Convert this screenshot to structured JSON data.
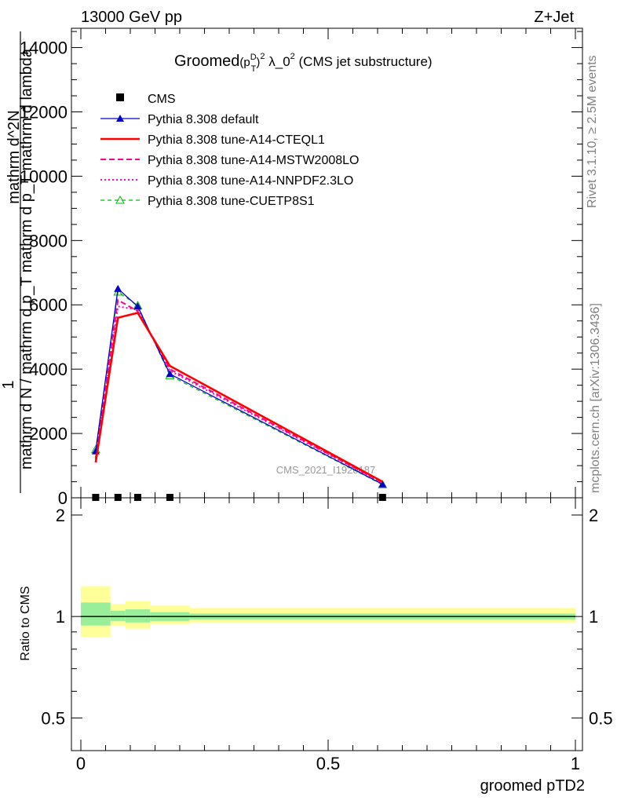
{
  "header": {
    "left": "13000 GeV pp",
    "right": "Z+Jet"
  },
  "plot_title": {
    "main": "Groomed",
    "p": "(p",
    "sup_d": "D",
    "sub_t": "T",
    "close": ")",
    "sup_2": "2",
    "lambda": " λ_0",
    "sup_2b": "2",
    "suffix": " (CMS jet substructure)"
  },
  "side_labels": {
    "rivet": "Rivet 3.1.10, ≥ 2.5M events",
    "mcplots": "mcplots.cern.ch [arXiv:1306.3436]"
  },
  "watermark": "CMS_2021_I1920187",
  "y_label_main": {
    "numerator_1": "1",
    "numerator_2": "mathrm d^2N",
    "denominator": "mathrm d N / mathrm d p_T mathrm d p_T mathrm d lambda"
  },
  "y_label_ratio": "Ratio to CMS",
  "x_label": "groomed pTD2",
  "chart_data": [
    {
      "type": "line",
      "x": [
        0.03,
        0.075,
        0.115,
        0.18,
        0.61
      ],
      "xlim": [
        -0.02,
        1.02
      ],
      "ylim": [
        0,
        14600
      ],
      "yticks": [
        0,
        2000,
        4000,
        6000,
        8000,
        10000,
        12000,
        14000
      ],
      "ytick_labels": [
        "0",
        "2000",
        "4000",
        "6000",
        "8000",
        "10000",
        "12000",
        "14000"
      ],
      "xticks": [
        0,
        0.5,
        1
      ],
      "xtick_labels": [
        "0",
        "0.5",
        "1"
      ],
      "grid": false,
      "legend_position": "top-left",
      "series": [
        {
          "name": "CMS",
          "style": "marker",
          "color": "#000000",
          "values": [
            0,
            0,
            0,
            0,
            0
          ]
        },
        {
          "name": "Pythia 8.308 default",
          "style": "solid-triangle",
          "color": "#0000cc",
          "values": [
            1450,
            6500,
            5950,
            3850,
            420
          ]
        },
        {
          "name": "Pythia 8.308 tune-A14-CTEQL1",
          "style": "solid-thick",
          "color": "#ff0000",
          "values": [
            1100,
            5600,
            5750,
            4100,
            500
          ]
        },
        {
          "name": "Pythia 8.308 tune-A14-MSTW2008LO",
          "style": "dashed",
          "color": "#ff0088",
          "values": [
            1200,
            6150,
            5800,
            4000,
            470
          ]
        },
        {
          "name": "Pythia 8.308 tune-A14-NNPDF2.3LO",
          "style": "dotted",
          "color": "#ff00cc",
          "values": [
            1250,
            5950,
            5850,
            3950,
            460
          ]
        },
        {
          "name": "Pythia 8.308 tune-CUETP8S1",
          "style": "dashed-open-triangle",
          "color": "#00bb00",
          "values": [
            1500,
            6400,
            5980,
            3800,
            410
          ]
        }
      ]
    },
    {
      "type": "area",
      "title": "Ratio to CMS",
      "ylim": [
        0.4,
        2.25
      ],
      "yticks": [
        0.5,
        1,
        2
      ],
      "ytick_labels": [
        "0.5",
        "1",
        "2"
      ],
      "xticks": [
        0,
        0.5,
        1
      ],
      "xtick_labels": [
        "0",
        "0.5",
        "1"
      ],
      "reference": 1,
      "bins": [
        {
          "x0": 0.0,
          "x1": 0.06,
          "band_outer": [
            0.87,
            1.23
          ],
          "band_inner": [
            0.94,
            1.1
          ]
        },
        {
          "x0": 0.06,
          "x1": 0.09,
          "band_outer": [
            0.94,
            1.09
          ],
          "band_inner": [
            0.97,
            1.04
          ]
        },
        {
          "x0": 0.09,
          "x1": 0.14,
          "band_outer": [
            0.92,
            1.11
          ],
          "band_inner": [
            0.96,
            1.05
          ]
        },
        {
          "x0": 0.14,
          "x1": 0.22,
          "band_outer": [
            0.95,
            1.08
          ],
          "band_inner": [
            0.97,
            1.03
          ]
        },
        {
          "x0": 0.22,
          "x1": 1.0,
          "band_outer": [
            0.96,
            1.06
          ],
          "band_inner": [
            0.98,
            1.02
          ]
        }
      ],
      "colors": {
        "band_outer": "#ffff99",
        "band_inner": "#99ee99",
        "reference_line": "#000000"
      }
    }
  ]
}
